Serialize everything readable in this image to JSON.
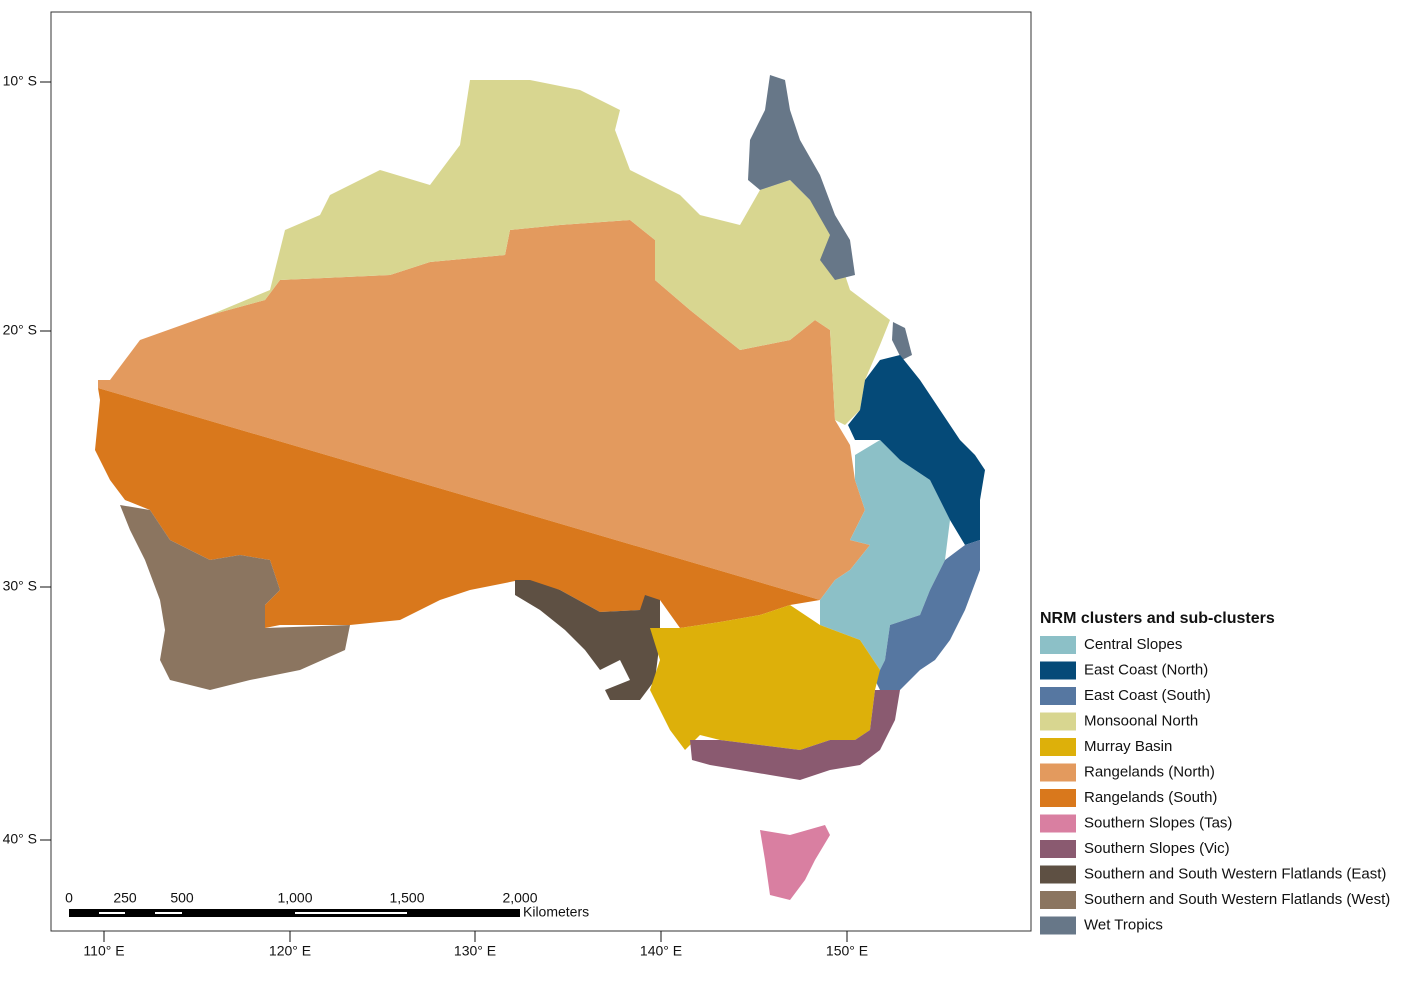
{
  "map": {
    "lat_labels": [
      "10° S",
      "20° S",
      "30° S",
      "40° S"
    ],
    "lon_labels": [
      "110° E",
      "120° E",
      "130° E",
      "140° E",
      "150° E"
    ],
    "scale_bar": {
      "labels": [
        "0",
        "250",
        "500",
        "1,000",
        "1,500",
        "2,000"
      ],
      "unit": "Kilometers"
    },
    "legend": {
      "title": "NRM clusters and sub-clusters",
      "items": [
        {
          "label": "Central Slopes",
          "color": "#8cc0c7"
        },
        {
          "label": "East Coast (North)",
          "color": "#054a78"
        },
        {
          "label": "East Coast (South)",
          "color": "#5677a1"
        },
        {
          "label": "Monsoonal North",
          "color": "#d8d690"
        },
        {
          "label": "Murray Basin",
          "color": "#ddb00a"
        },
        {
          "label": "Rangelands (North)",
          "color": "#e39a5e"
        },
        {
          "label": "Rangelands (South)",
          "color": "#d9781c"
        },
        {
          "label": "Southern Slopes (Tas)",
          "color": "#d97fa1"
        },
        {
          "label": "Southern Slopes (Vic)",
          "color": "#8a5a70"
        },
        {
          "label": "Southern and South Western Flatlands (East)",
          "color": "#5e5043"
        },
        {
          "label": "Southern and South Western Flatlands (West)",
          "color": "#8b7560"
        },
        {
          "label": "Wet Tropics",
          "color": "#677788"
        }
      ]
    }
  }
}
